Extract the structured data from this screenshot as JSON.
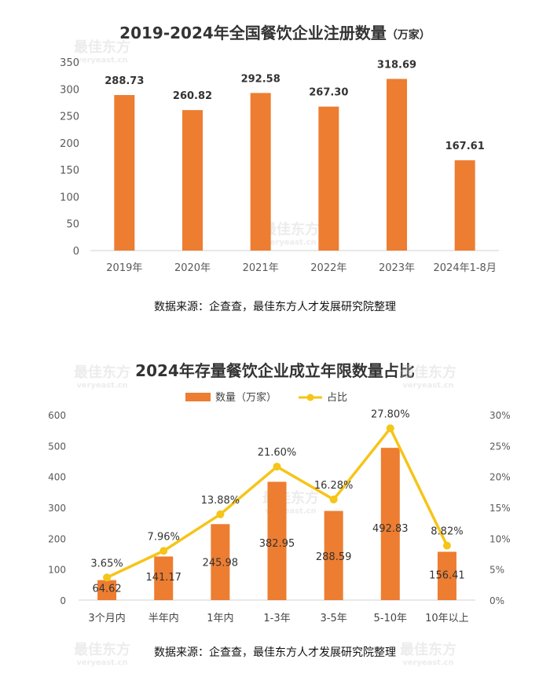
{
  "chart_data": [
    {
      "type": "bar",
      "title": "2019-2024年全国餐饮企业注册数量",
      "title_unit": "（万家）",
      "categories": [
        "2019年",
        "2020年",
        "2021年",
        "2022年",
        "2023年",
        "2024年1-8月"
      ],
      "values": [
        288.73,
        260.82,
        292.58,
        267.3,
        318.69,
        167.61
      ],
      "data_labels": [
        "288.73",
        "260.82",
        "292.58",
        "267.30",
        "318.69",
        "167.61"
      ],
      "ylim": [
        0,
        350
      ],
      "yticks": [
        0,
        50,
        100,
        150,
        200,
        250,
        300,
        350
      ],
      "grid": false,
      "bar_color": "#ED7D31",
      "source": "数据来源：企查查，最佳东方人才发展研究院整理"
    },
    {
      "type": "bar",
      "title": "2024年存量餐饮企业成立年限数量占比",
      "categories": [
        "3个月内",
        "半年内",
        "1年内",
        "1-3年",
        "3-5年",
        "5-10年",
        "10年以上"
      ],
      "series": [
        {
          "name": "数量（万家）",
          "type": "bar",
          "axis": "left",
          "values": [
            64.62,
            141.17,
            245.98,
            382.95,
            288.59,
            492.83,
            156.41
          ],
          "labels": [
            "64.62",
            "141.17",
            "245.98",
            "382.95",
            "288.59",
            "492.83",
            "156.41"
          ],
          "color": "#ED7D31"
        },
        {
          "name": "占比",
          "type": "line",
          "axis": "right",
          "values": [
            3.65,
            7.96,
            13.88,
            21.6,
            16.28,
            27.8,
            8.82
          ],
          "labels": [
            "3.65%",
            "7.96%",
            "13.88%",
            "21.60%",
            "16.28%",
            "27.80%",
            "8.82%"
          ],
          "color": "#F5C518"
        }
      ],
      "ylim": [
        0,
        600
      ],
      "yticks": [
        "0",
        "100",
        "200",
        "300",
        "400",
        "500",
        "600"
      ],
      "y2lim": [
        0,
        30
      ],
      "y2ticks": [
        "0%",
        "5%",
        "10%",
        "15%",
        "20%",
        "25%",
        "30%"
      ],
      "legend_position": "top-center",
      "grid": false,
      "source": "数据来源：企查查，最佳东方人才发展研究院整理"
    }
  ],
  "watermark": {
    "brand": "最佳东方",
    "site": "veryeast.cn"
  }
}
